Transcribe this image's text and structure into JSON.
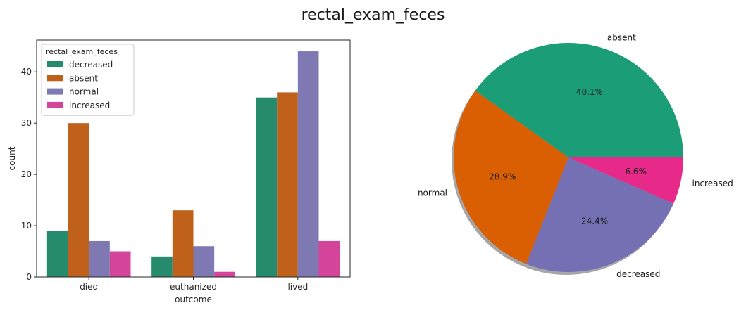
{
  "suptitle": "rectal_exam_feces",
  "colors": {
    "decreased": "#268a6d",
    "absent": "#c0611b",
    "normal": "#7e79b2",
    "increased": "#d3449a",
    "pie": [
      "#1b9e77",
      "#d95f02",
      "#7570b3",
      "#e7298a"
    ]
  },
  "chart_data": [
    {
      "type": "bar",
      "title": "",
      "xlabel": "outcome",
      "ylabel": "count",
      "categories": [
        "died",
        "euthanized",
        "lived"
      ],
      "ylim": [
        0,
        46.2
      ],
      "yticks": [
        0,
        10,
        20,
        30,
        40
      ],
      "grid": false,
      "legend": {
        "title": "rectal_exam_feces",
        "placement": "top-left"
      },
      "series": [
        {
          "name": "decreased",
          "values": [
            9,
            4,
            35
          ]
        },
        {
          "name": "absent",
          "values": [
            30,
            13,
            36
          ]
        },
        {
          "name": "normal",
          "values": [
            7,
            6,
            44
          ]
        },
        {
          "name": "increased",
          "values": [
            5,
            1,
            7
          ]
        }
      ]
    },
    {
      "type": "pie",
      "title": "",
      "shadow": true,
      "slices": [
        {
          "label": "absent",
          "value": 40.1,
          "pct_label": "40.1%"
        },
        {
          "label": "normal",
          "value": 28.9,
          "pct_label": "28.9%"
        },
        {
          "label": "decreased",
          "value": 24.4,
          "pct_label": "24.4%"
        },
        {
          "label": "increased",
          "value": 6.6,
          "pct_label": "6.6%"
        }
      ]
    }
  ]
}
